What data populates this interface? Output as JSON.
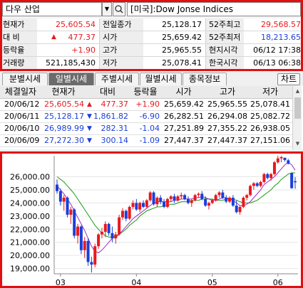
{
  "search": {
    "name": "다우 산업",
    "index": "[미국]:Dow Jonse Indices"
  },
  "quote": {
    "rows": [
      {
        "l1": "현재가",
        "v1": "25,605.54",
        "l2": "전일종가",
        "v2": "25,128.17",
        "l3": "52주최고",
        "v3": "29,568.57"
      },
      {
        "l1": "대  비",
        "v1": "477.37",
        "l2": "시가",
        "v2": "25,659.42",
        "l3": "52주최저",
        "v3": "18,213.65"
      },
      {
        "l1": "등락율",
        "v1": "+1.90",
        "l2": "고가",
        "v2": "25,965.55",
        "l3": "현지시각",
        "v3": "06/12 17:38"
      },
      {
        "l1": "거래량",
        "v1": "521,185,430",
        "l2": "저가",
        "v2": "25,078.41",
        "l3": "한국시각",
        "v3": "06/13 06:38"
      }
    ],
    "up_arrow": "▲"
  },
  "tabs": [
    "분별시세",
    "일별시세",
    "주별시세",
    "월별시세",
    "종목정보"
  ],
  "chart_button": "차트",
  "daily": {
    "headers": [
      "체결일자",
      "현재가",
      "대비",
      "등락율",
      "시가",
      "고가",
      "저가"
    ],
    "rows": [
      {
        "date": "20/06/12",
        "price": "25,605.54",
        "arrow": "▲",
        "change": "477.37",
        "rate": "+1.90",
        "open": "25,659.42",
        "high": "25,965.55",
        "low": "25,078.41",
        "dir": "up"
      },
      {
        "date": "20/06/11",
        "price": "25,128.17",
        "arrow": "▼",
        "change": "1,861.82",
        "rate": "-6.90",
        "open": "26,282.51",
        "high": "26,294.08",
        "low": "25,082.72",
        "dir": "down"
      },
      {
        "date": "20/06/10",
        "price": "26,989.99",
        "arrow": "▼",
        "change": "282.31",
        "rate": "-1.04",
        "open": "27,251.89",
        "high": "27,355.22",
        "low": "26,938.05",
        "dir": "down"
      },
      {
        "date": "20/06/09",
        "price": "27,272.30",
        "arrow": "▼",
        "change": "300.14",
        "rate": "-1.09",
        "open": "27,447.37",
        "high": "27,447.37",
        "low": "27,151.06",
        "dir": "down"
      }
    ]
  },
  "colors": {
    "up": "#e8191e",
    "down": "#1a3fd8",
    "ma_short": "#9b2fbf",
    "ma_long": "#1a9a1a",
    "frame": "#e01010"
  },
  "chart_data": {
    "type": "candlestick",
    "y_ticks": [
      "26,000.00",
      "25,000.00",
      "24,000.00",
      "23,000.00",
      "22,000.00",
      "21,000.00",
      "20,000.00",
      "19,000.00"
    ],
    "x_ticks": [
      "03",
      "04",
      "05",
      "06"
    ],
    "ylim": [
      18600,
      27600
    ],
    "candles": [
      [
        25400,
        25800,
        24700,
        24900
      ],
      [
        24900,
        25100,
        23800,
        24100
      ],
      [
        24100,
        24600,
        23400,
        24400
      ],
      [
        24400,
        24500,
        22900,
        23100
      ],
      [
        23100,
        23700,
        22400,
        23500
      ],
      [
        23500,
        23600,
        21300,
        21500
      ],
      [
        21500,
        22400,
        20900,
        22200
      ],
      [
        22200,
        22300,
        20100,
        20400
      ],
      [
        20400,
        21400,
        19800,
        21100
      ],
      [
        21100,
        21300,
        19200,
        19500
      ],
      [
        19500,
        19900,
        18700,
        19300
      ],
      [
        19300,
        20900,
        19100,
        20700
      ],
      [
        20700,
        21700,
        20500,
        21600
      ],
      [
        21600,
        22100,
        21300,
        21800
      ],
      [
        21800,
        22600,
        21400,
        22400
      ],
      [
        22400,
        22500,
        21500,
        21700
      ],
      [
        21700,
        22200,
        21000,
        21300
      ],
      [
        21300,
        21800,
        20900,
        21600
      ],
      [
        21600,
        23100,
        21500,
        22900
      ],
      [
        22900,
        23600,
        22700,
        23400
      ],
      [
        23400,
        23500,
        22600,
        22800
      ],
      [
        22800,
        23800,
        22700,
        23700
      ],
      [
        23700,
        24200,
        23500,
        24000
      ],
      [
        24000,
        24300,
        23400,
        23500
      ],
      [
        23500,
        24100,
        23300,
        24000
      ],
      [
        24000,
        24200,
        23600,
        23700
      ],
      [
        23700,
        24300,
        23600,
        24200
      ],
      [
        24200,
        24900,
        24100,
        24800
      ],
      [
        24800,
        24900,
        23800,
        23900
      ],
      [
        23900,
        24500,
        23700,
        24400
      ],
      [
        24400,
        24600,
        23900,
        24100
      ],
      [
        24100,
        24300,
        23600,
        23700
      ],
      [
        23700,
        24400,
        23600,
        24300
      ],
      [
        24300,
        24600,
        24100,
        24500
      ],
      [
        24500,
        24700,
        24000,
        24200
      ],
      [
        24200,
        24600,
        24100,
        24500
      ],
      [
        24500,
        24800,
        24300,
        24600
      ],
      [
        24600,
        24700,
        24200,
        24300
      ],
      [
        24300,
        24500,
        23900,
        24000
      ],
      [
        24000,
        24300,
        23700,
        24200
      ],
      [
        24200,
        24700,
        24100,
        24600
      ],
      [
        24600,
        24800,
        24400,
        24700
      ],
      [
        24700,
        24900,
        24200,
        24300
      ],
      [
        24300,
        24500,
        23700,
        23800
      ],
      [
        23800,
        24100,
        23500,
        24000
      ],
      [
        24000,
        24300,
        23900,
        24200
      ],
      [
        24200,
        24700,
        24100,
        24600
      ],
      [
        24600,
        24900,
        24400,
        24800
      ],
      [
        24800,
        25000,
        24300,
        24400
      ],
      [
        24400,
        24600,
        24000,
        24100
      ],
      [
        24100,
        24500,
        24000,
        24400
      ],
      [
        24400,
        24600,
        23700,
        23800
      ],
      [
        23800,
        24200,
        23200,
        23300
      ],
      [
        23300,
        23800,
        23100,
        23700
      ],
      [
        23700,
        24500,
        23600,
        24400
      ],
      [
        24400,
        24700,
        24200,
        24600
      ],
      [
        24600,
        25400,
        24500,
        25300
      ],
      [
        25300,
        25600,
        25000,
        25500
      ],
      [
        25500,
        25600,
        25200,
        25300
      ],
      [
        25300,
        25700,
        25200,
        25600
      ],
      [
        25600,
        26300,
        25500,
        26200
      ],
      [
        26200,
        26300,
        25800,
        25900
      ],
      [
        25900,
        26300,
        25700,
        26200
      ],
      [
        26200,
        27200,
        26100,
        27100
      ],
      [
        27100,
        27600,
        27000,
        27400
      ],
      [
        27400,
        27580,
        27100,
        27500
      ],
      [
        27447,
        27447,
        27151,
        27272
      ],
      [
        27252,
        27355,
        26938,
        26990
      ],
      [
        26283,
        26294,
        25083,
        25128
      ],
      [
        25659,
        25966,
        25078,
        25606
      ]
    ],
    "ma_short": [
      25300,
      25000,
      24700,
      24300,
      23900,
      23400,
      22900,
      22400,
      21900,
      21300,
      20700,
      20300,
      20200,
      20400,
      20700,
      21000,
      21300,
      21400,
      21600,
      21900,
      22200,
      22500,
      22800,
      23000,
      23200,
      23400,
      23600,
      23800,
      24000,
      24100,
      24100,
      24100,
      24100,
      24100,
      24200,
      24200,
      24300,
      24300,
      24300,
      24300,
      24400,
      24400,
      24500,
      24400,
      24300,
      24200,
      24200,
      24300,
      24400,
      24400,
      24300,
      24200,
      24000,
      23800,
      23800,
      23900,
      24100,
      24400,
      24700,
      25000,
      25400,
      25600,
      25800,
      26000,
      26300,
      26600,
      26900,
      27100,
      26900,
      26500
    ],
    "ma_long": [
      26000,
      25800,
      25600,
      25300,
      25000,
      24700,
      24300,
      23900,
      23500,
      23100,
      22700,
      22300,
      22000,
      21700,
      21500,
      21400,
      21400,
      21500,
      21600,
      21800,
      22000,
      22300,
      22500,
      22700,
      23000,
      23200,
      23400,
      23500,
      23600,
      23700,
      23700,
      23800,
      23800,
      23900,
      23900,
      24000,
      24100,
      24100,
      24100,
      24200,
      24200,
      24200,
      24300,
      24300,
      24300,
      24300,
      24200,
      24200,
      24200,
      24300,
      24300,
      24300,
      24200,
      24100,
      24000,
      24000,
      24000,
      24100,
      24200,
      24400,
      24600,
      24800,
      25000,
      25300,
      25500,
      25800,
      26000,
      26200,
      26300,
      26300
    ]
  }
}
